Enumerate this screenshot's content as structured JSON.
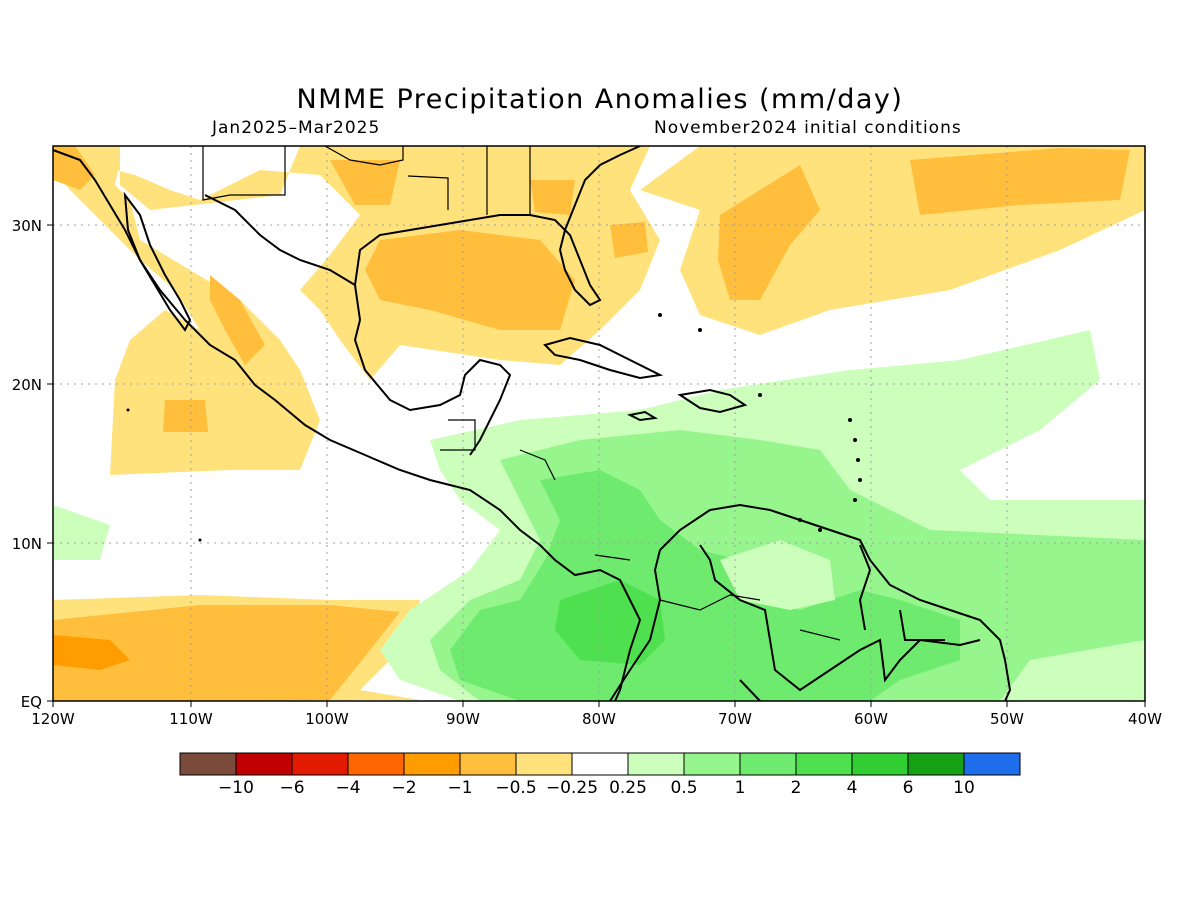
{
  "title": "NMME Precipitation Anomalies (mm/day)",
  "period": "Jan2025–Mar2025",
  "init": "November2024 initial conditions",
  "axes": {
    "lon_labels": [
      "120W",
      "110W",
      "100W",
      "90W",
      "80W",
      "70W",
      "60W",
      "50W",
      "40W"
    ],
    "lat_labels": [
      "30N",
      "20N",
      "10N",
      "EQ"
    ]
  },
  "colorbar": {
    "colors": [
      "#7a4a3a",
      "#c00000",
      "#e21a00",
      "#ff6600",
      "#ff9d00",
      "#ffbe3c",
      "#ffe27c",
      "#ffffff",
      "#ccffbc",
      "#96f58c",
      "#6eeb6e",
      "#4ee04e",
      "#32cd32",
      "#16a016",
      "#1e6eeb"
    ],
    "labels": [
      "−10",
      "−6",
      "−4",
      "−2",
      "−1",
      "−0.5",
      "−0.25",
      "0.25",
      "0.5",
      "1",
      "2",
      "4",
      "6",
      "10"
    ]
  }
}
